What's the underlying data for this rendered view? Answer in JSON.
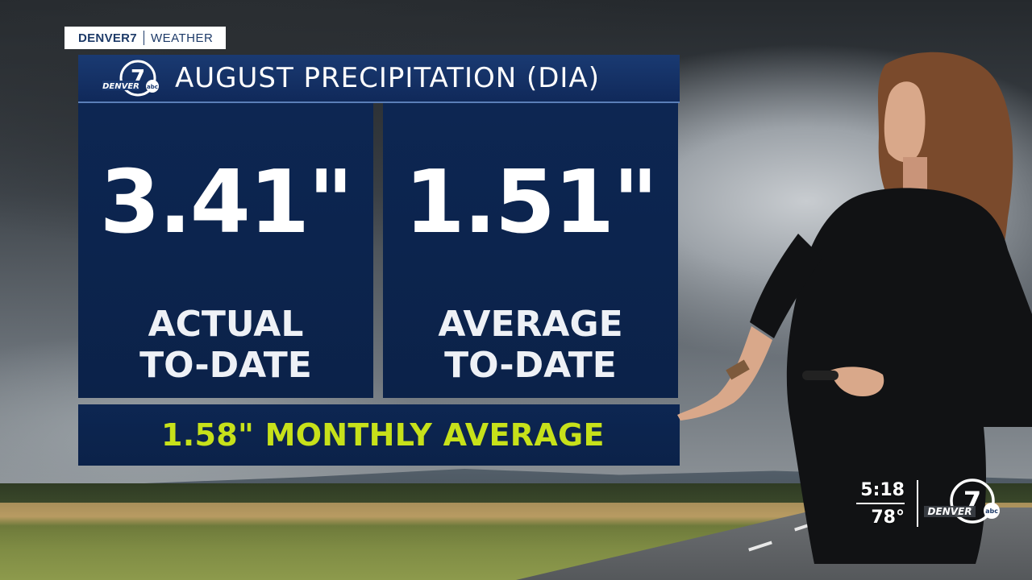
{
  "brand": {
    "station": "DENVER7",
    "section": "WEATHER"
  },
  "graphic": {
    "title": "AUGUST PRECIPITATION (DIA)",
    "logo_number": "7",
    "logo_text": "DENVER",
    "logo_network": "abc",
    "actual": {
      "value": "3.41\"",
      "label_line1": "ACTUAL",
      "label_line2": "TO-DATE"
    },
    "average": {
      "value": "1.51\"",
      "label_line1": "AVERAGE",
      "label_line2": "TO-DATE"
    },
    "monthly_average": "1.58\" MONTHLY AVERAGE"
  },
  "bug": {
    "time": "5:18",
    "temperature": "78°",
    "logo_number": "7",
    "logo_text": "DENVER",
    "logo_network": "abc"
  },
  "colors": {
    "panel_navy": "#0d2652",
    "title_navy": "#1a3a72",
    "highlight_green": "#c7e11a",
    "brand_blue": "#1d3a68"
  }
}
